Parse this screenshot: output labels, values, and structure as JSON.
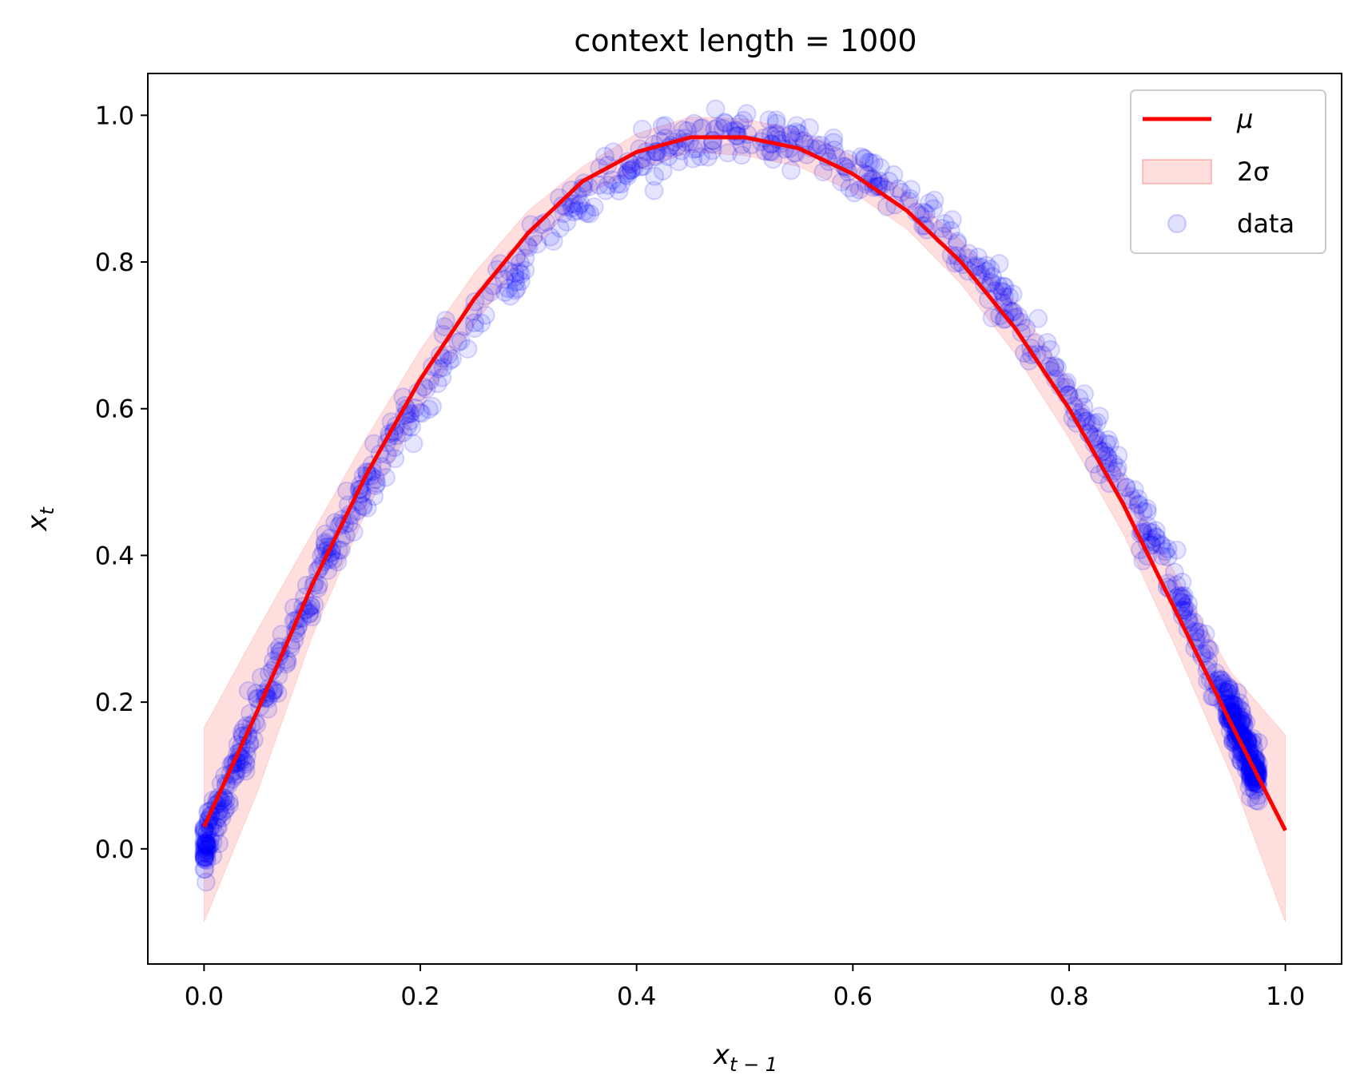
{
  "chart_data": {
    "type": "scatter",
    "title": "context length = 1000",
    "xlabel": {
      "base": "x",
      "sub": "t − 1"
    },
    "ylabel": {
      "base": "x",
      "sub": "t"
    },
    "xlim": [
      -0.052,
      1.052
    ],
    "ylim": [
      -0.157,
      1.057
    ],
    "xticks": [
      {
        "value": 0.0,
        "label": "0.0"
      },
      {
        "value": 0.2,
        "label": "0.2"
      },
      {
        "value": 0.4,
        "label": "0.4"
      },
      {
        "value": 0.6,
        "label": "0.6"
      },
      {
        "value": 0.8,
        "label": "0.8"
      },
      {
        "value": 1.0,
        "label": "1.0"
      }
    ],
    "yticks": [
      {
        "value": 0.0,
        "label": "0.0"
      },
      {
        "value": 0.2,
        "label": "0.2"
      },
      {
        "value": 0.4,
        "label": "0.4"
      },
      {
        "value": 0.6,
        "label": "0.6"
      },
      {
        "value": 0.8,
        "label": "0.8"
      },
      {
        "value": 1.0,
        "label": "1.0"
      }
    ],
    "grid": false,
    "legend_position": "top-right",
    "series": [
      {
        "name": "μ",
        "kind": "line",
        "color": "#ff0000",
        "x": [
          0.0,
          0.05,
          0.1,
          0.15,
          0.2,
          0.25,
          0.3,
          0.35,
          0.4,
          0.45,
          0.5,
          0.55,
          0.6,
          0.65,
          0.7,
          0.75,
          0.8,
          0.85,
          0.9,
          0.95,
          1.0
        ],
        "y": [
          0.03,
          0.19,
          0.36,
          0.51,
          0.64,
          0.75,
          0.84,
          0.91,
          0.95,
          0.97,
          0.97,
          0.955,
          0.92,
          0.87,
          0.8,
          0.71,
          0.6,
          0.47,
          0.32,
          0.17,
          0.025
        ]
      },
      {
        "name": "2σ",
        "kind": "band",
        "color": "#ff0000",
        "x": [
          0.0,
          0.05,
          0.1,
          0.15,
          0.2,
          0.25,
          0.3,
          0.35,
          0.4,
          0.45,
          0.5,
          0.55,
          0.6,
          0.65,
          0.7,
          0.75,
          0.8,
          0.85,
          0.9,
          0.95,
          1.0
        ],
        "upper": [
          0.165,
          0.3,
          0.43,
          0.56,
          0.68,
          0.785,
          0.87,
          0.93,
          0.975,
          0.998,
          0.995,
          0.98,
          0.945,
          0.895,
          0.83,
          0.745,
          0.64,
          0.51,
          0.37,
          0.24,
          0.155
        ],
        "lower": [
          -0.1,
          0.08,
          0.29,
          0.46,
          0.6,
          0.715,
          0.81,
          0.89,
          0.925,
          0.95,
          0.945,
          0.93,
          0.895,
          0.845,
          0.77,
          0.675,
          0.56,
          0.43,
          0.27,
          0.1,
          -0.1
        ]
      },
      {
        "name": "data",
        "kind": "scatter",
        "color": "#0000ff",
        "approximate_points": 1000,
        "relation": "x_t ≈ 3.88 · x_{t−1} · (1 − x_{t−1})",
        "x_range_observed": [
          0.0,
          0.975
        ]
      }
    ]
  }
}
